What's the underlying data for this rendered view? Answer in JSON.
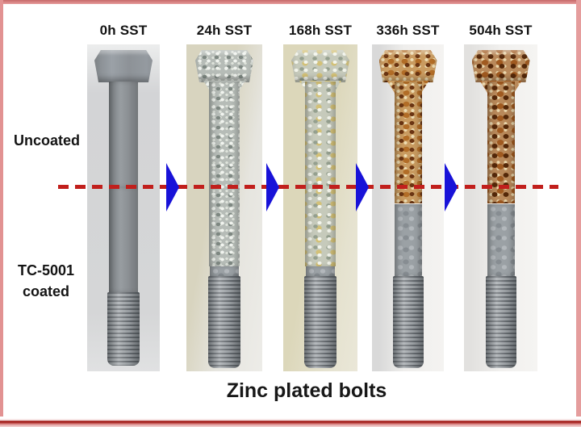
{
  "figure": {
    "title": "Zinc plated bolts",
    "row_labels": {
      "top": "Uncoated",
      "bottom_line1": "TC-5001",
      "bottom_line2": "coated"
    }
  },
  "columns": [
    {
      "label": "0h SST",
      "style_key": "c0",
      "appearance": "as-plated uniform grey"
    },
    {
      "label": "24h SST",
      "style_key": "c1",
      "appearance": "white rust mottling"
    },
    {
      "label": "168h SST",
      "style_key": "c2",
      "appearance": "white rust with yellow staining"
    },
    {
      "label": "336h SST",
      "style_key": "c3",
      "appearance": "red rust on uncoated upper half, grey coated lower half"
    },
    {
      "label": "504h SST",
      "style_key": "c4",
      "appearance": "severe red rust on uncoated upper half, grey coated lower half"
    }
  ],
  "arrows": {
    "count": 4,
    "direction": "right"
  },
  "divider": {
    "style": "dashed",
    "orientation": "horizontal"
  },
  "colors": {
    "divider_red": "#c11f1c",
    "arrow_blue": "#1812d8",
    "bottom_rule": "#ab2f2c",
    "frame_border": "#e29292"
  }
}
